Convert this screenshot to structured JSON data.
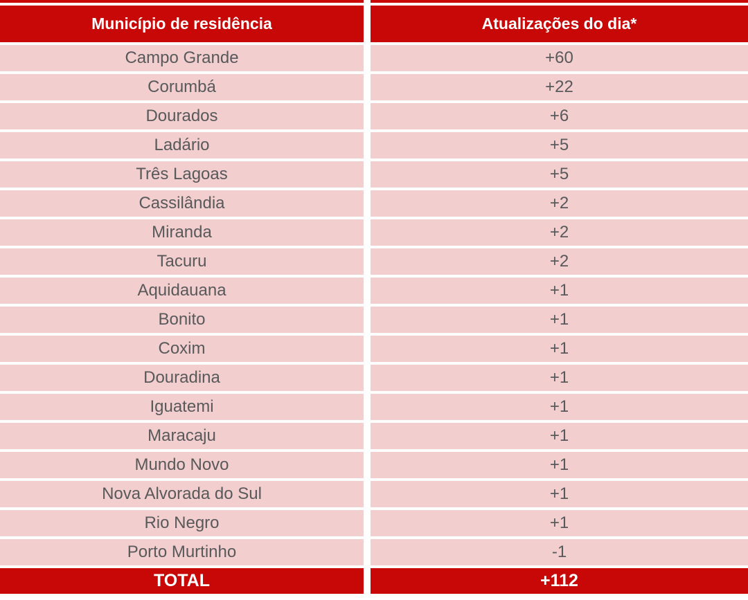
{
  "chart_data": {
    "type": "table",
    "columns": [
      "Município de residência",
      "Atualizações do dia*"
    ],
    "rows": [
      [
        "Campo Grande",
        "+60"
      ],
      [
        "Corumbá",
        "+22"
      ],
      [
        "Dourados",
        "+6"
      ],
      [
        "Ladário",
        "+5"
      ],
      [
        "Três Lagoas",
        "+5"
      ],
      [
        "Cassilândia",
        "+2"
      ],
      [
        "Miranda",
        "+2"
      ],
      [
        "Tacuru",
        "+2"
      ],
      [
        "Aquidauana",
        "+1"
      ],
      [
        "Bonito",
        "+1"
      ],
      [
        "Coxim",
        "+1"
      ],
      [
        "Douradina",
        "+1"
      ],
      [
        "Iguatemi",
        "+1"
      ],
      [
        "Maracaju",
        "+1"
      ],
      [
        "Mundo Novo",
        "+1"
      ],
      [
        "Nova Alvorada do Sul",
        "+1"
      ],
      [
        "Rio Negro",
        "+1"
      ],
      [
        "Porto Murtinho",
        "-1"
      ]
    ],
    "total": {
      "label": "TOTAL",
      "value": "+112"
    }
  },
  "colors": {
    "header_bg": "#C80707",
    "row_bg": "#F3CECE",
    "row_text": "#58595B",
    "header_text": "#FFFFFF",
    "page_bg": "#FFFFFF"
  }
}
